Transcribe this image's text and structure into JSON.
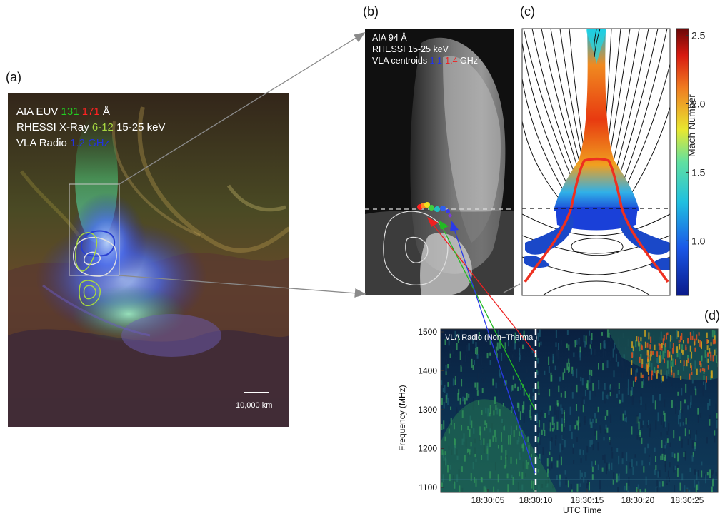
{
  "panel_labels": {
    "a": "(a)",
    "b": "(b)",
    "c": "(c)",
    "d": "(d)"
  },
  "panel_a": {
    "legend": [
      {
        "prefix": "AIA EUV ",
        "parts": [
          {
            "t": "131",
            "c": "#22cc22"
          },
          {
            "t": " ",
            "c": "#ffffff"
          },
          {
            "t": "171",
            "c": "#ff2222"
          }
        ],
        "suffix": " Å"
      },
      {
        "prefix": "RHESSI X-Ray ",
        "parts": [
          {
            "t": "6-12",
            "c": "#a8d840"
          }
        ],
        "suffix": " 15-25 keV"
      },
      {
        "prefix": "VLA Radio ",
        "parts": [
          {
            "t": "1.2 GHz",
            "c": "#2233dd"
          }
        ],
        "suffix": ""
      }
    ],
    "scale_label": "10,000 km"
  },
  "panel_b": {
    "legend_lines": [
      "AIA 94 Å",
      "RHESSI 15-25 keV"
    ],
    "centroid_prefix": "VLA centroids ",
    "centroid_low": "1.1",
    "centroid_dash": "-",
    "centroid_high": "1.4",
    "centroid_suffix": " GHz",
    "colors": {
      "low": "#2233ee",
      "high": "#ee2222"
    }
  },
  "panel_c": {
    "colorbar_title": "Mach Number",
    "colorbar_ticks": [
      "2.5",
      "2.0",
      "1.5",
      "1.0"
    ],
    "colorbar_tick_values": [
      2.5,
      2.0,
      1.5,
      1.0
    ]
  },
  "panel_d": {
    "inset_label": "VLA Radio (Non−Thermal)",
    "ylabel": "Frequency (MHz)",
    "xlabel": "UTC Time",
    "yticks": [
      "1500",
      "1400",
      "1300",
      "1200",
      "1100"
    ],
    "ytick_values": [
      1500,
      1400,
      1300,
      1200,
      1100
    ],
    "xticks": [
      "18:30:05",
      "18:30:10",
      "18:30:15",
      "18:30:20",
      "18:30:25"
    ]
  }
}
